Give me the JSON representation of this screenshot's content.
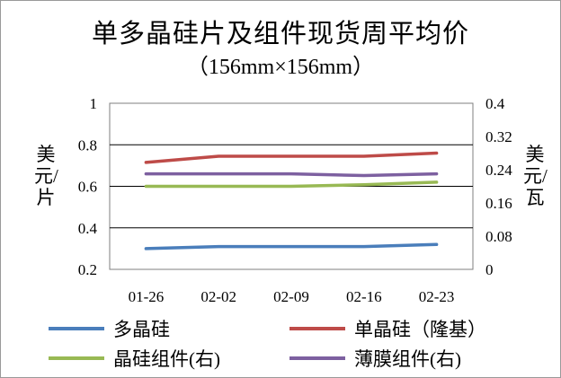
{
  "chart_data": {
    "type": "line",
    "title": "单多晶硅片及组件现货周平均价",
    "subtitle": "（156mm×156mm）",
    "categories": [
      "01-26",
      "02-02",
      "02-09",
      "02-16",
      "02-23"
    ],
    "ylabel_left": "美元/片",
    "ylabel_right": "美元/瓦",
    "y_left": {
      "min": 0.2,
      "max": 1.0,
      "ticks": [
        0.2,
        0.4,
        0.6,
        0.8,
        1.0
      ],
      "tick_labels": [
        "0.2",
        "0.4",
        "0.6",
        "0.8",
        "1"
      ]
    },
    "y_right": {
      "min": 0,
      "max": 0.4,
      "ticks": [
        0,
        0.08,
        0.16,
        0.24,
        0.32,
        0.4
      ],
      "tick_labels": [
        "0",
        "0.08",
        "0.16",
        "0.24",
        "0.32",
        "0.4"
      ]
    },
    "grid": true,
    "legend_position": "bottom",
    "series": [
      {
        "name": "多晶硅",
        "axis": "left",
        "color": "#4a7ebb",
        "values": [
          0.3,
          0.31,
          0.31,
          0.31,
          0.32
        ]
      },
      {
        "name": "单晶硅（隆基）",
        "axis": "left",
        "color": "#be4b48",
        "values": [
          0.715,
          0.745,
          0.745,
          0.745,
          0.76
        ]
      },
      {
        "name": "晶硅组件(右)",
        "axis": "right",
        "color": "#98b954",
        "values": [
          0.2,
          0.2,
          0.2,
          0.204,
          0.21
        ]
      },
      {
        "name": "薄膜组件(右)",
        "axis": "right",
        "color": "#7d60a0",
        "values": [
          0.23,
          0.23,
          0.23,
          0.226,
          0.23
        ]
      }
    ]
  }
}
